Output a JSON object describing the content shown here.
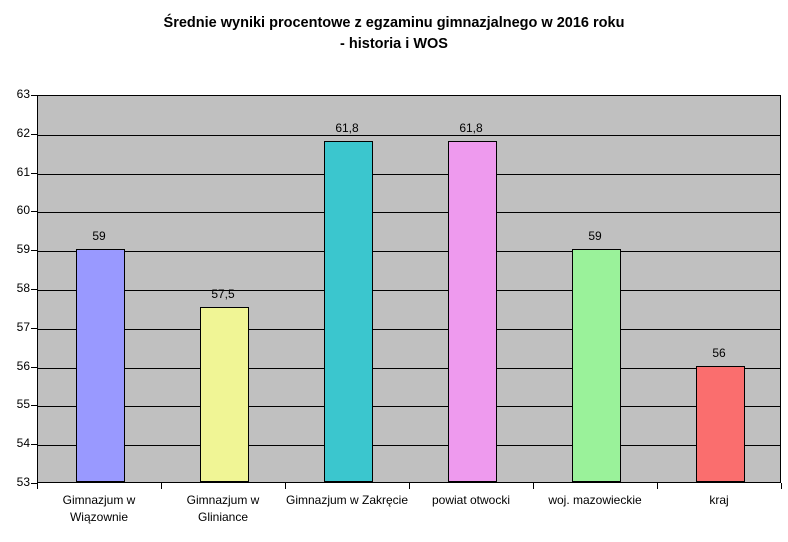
{
  "chart": {
    "title_line1": "Średnie wyniki procentowe z egzaminu gimnazjalnego w 2016 roku",
    "title_line2": "- historia i WOS"
  },
  "chart_data": {
    "type": "bar",
    "title": "Średnie wyniki procentowe z egzaminu gimnazjalnego w 2016 roku - historia i WOS",
    "categories": [
      "Gimnazjum w Wiązownie",
      "Gimnazjum w Gliniance",
      "Gimnazjum w Zakręcie",
      "powiat otwocki",
      "woj. mazowieckie",
      "kraj"
    ],
    "values": [
      59,
      57.5,
      61.8,
      61.8,
      59,
      56
    ],
    "value_labels": [
      "59",
      "57,5",
      "61,8",
      "61,8",
      "59",
      "56"
    ],
    "bar_colors": [
      "#9999FF",
      "#F0F595",
      "#3BC6CE",
      "#EE9AEE",
      "#9AF29A",
      "#FA6E6E"
    ],
    "xlabel": "",
    "ylabel": "",
    "ylim": [
      53,
      63
    ],
    "yticks": [
      53,
      54,
      55,
      56,
      57,
      58,
      59,
      60,
      61,
      62,
      63
    ],
    "grid": true,
    "legend_position": "none",
    "plot_bg_color": "#C0C0C0",
    "gridline_color": "#000000",
    "text_color": "#000000"
  }
}
